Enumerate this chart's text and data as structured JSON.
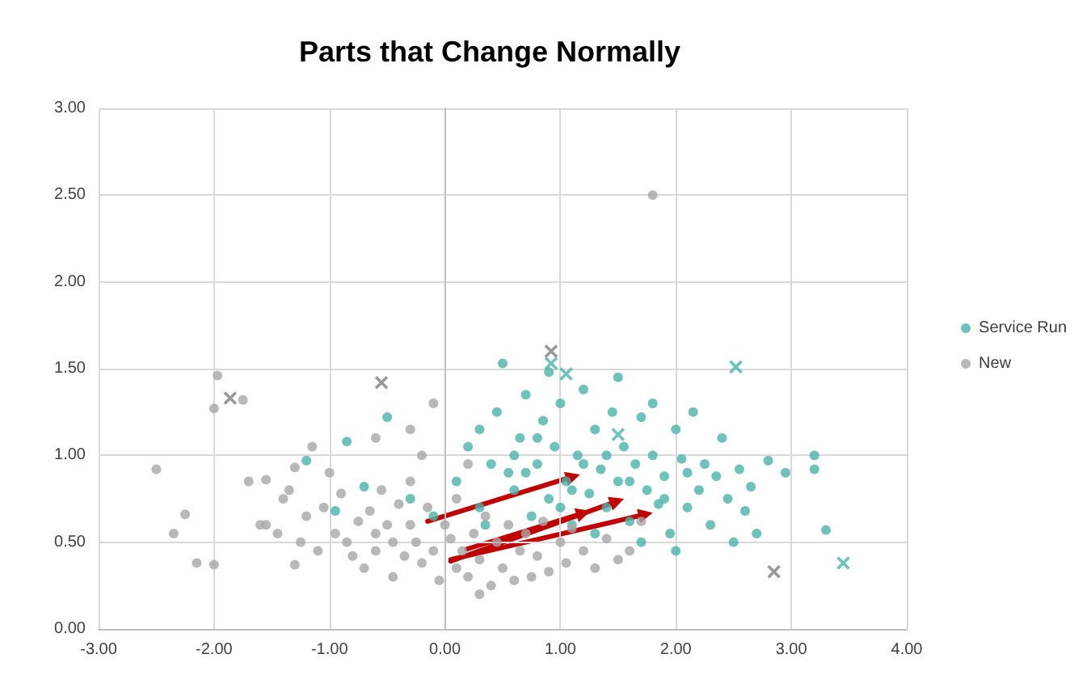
{
  "chart_data": {
    "type": "scatter",
    "title": "Parts that Change Normally",
    "xlim": [
      -3,
      4
    ],
    "ylim": [
      0,
      3
    ],
    "xticks": [
      {
        "value": -3,
        "label": "-3.00"
      },
      {
        "value": -2,
        "label": "-2.00"
      },
      {
        "value": -1,
        "label": "-1.00"
      },
      {
        "value": 0,
        "label": "0.00"
      },
      {
        "value": 1,
        "label": "1.00"
      },
      {
        "value": 2,
        "label": "2.00"
      },
      {
        "value": 3,
        "label": "3.00"
      },
      {
        "value": 4,
        "label": "4.00"
      }
    ],
    "yticks": [
      {
        "value": 0,
        "label": "0.00"
      },
      {
        "value": 0.5,
        "label": "0.50"
      },
      {
        "value": 1,
        "label": "1.00"
      },
      {
        "value": 1.5,
        "label": "1.50"
      },
      {
        "value": 2,
        "label": "2.00"
      },
      {
        "value": 2.5,
        "label": "2.50"
      },
      {
        "value": 3,
        "label": "3.00"
      }
    ],
    "grid": true,
    "legend": "right",
    "marker": "circle",
    "series": [
      {
        "name": "Service Run",
        "color": "#4bb3a8",
        "x": [
          -1.2,
          -0.85,
          -0.5,
          -0.95,
          -0.7,
          -0.3,
          -0.1,
          0.1,
          0.2,
          0.3,
          0.4,
          0.45,
          0.5,
          0.6,
          0.65,
          0.7,
          0.75,
          0.8,
          0.85,
          0.9,
          0.95,
          1.0,
          1.05,
          1.1,
          1.15,
          1.2,
          1.25,
          1.3,
          1.35,
          1.4,
          1.45,
          1.5,
          1.55,
          1.6,
          1.65,
          1.7,
          1.75,
          1.8,
          1.85,
          1.9,
          1.95,
          2.0,
          2.05,
          2.1,
          2.15,
          2.2,
          2.25,
          2.3,
          2.35,
          2.4,
          2.45,
          2.5,
          2.55,
          2.6,
          2.65,
          2.7,
          2.8,
          2.95,
          3.2,
          3.2,
          3.3,
          0.3,
          0.55,
          1.0,
          1.3,
          1.7,
          2.0,
          1.8,
          1.5,
          0.9,
          0.35,
          0.7,
          1.1,
          1.4,
          1.6,
          1.9,
          2.1,
          0.6,
          0.8,
          1.2
        ],
        "values": [
          0.97,
          1.08,
          1.22,
          0.68,
          0.82,
          0.75,
          0.65,
          0.85,
          1.05,
          0.7,
          0.95,
          1.25,
          1.53,
          0.8,
          1.1,
          1.35,
          0.65,
          0.95,
          1.2,
          0.75,
          1.05,
          1.3,
          0.85,
          0.6,
          1.0,
          1.38,
          0.78,
          1.15,
          0.92,
          0.7,
          1.25,
          0.85,
          1.05,
          0.62,
          0.95,
          1.22,
          0.8,
          1.0,
          0.72,
          0.88,
          0.55,
          1.15,
          0.98,
          0.7,
          1.25,
          0.8,
          0.95,
          0.6,
          0.88,
          1.1,
          0.75,
          0.5,
          0.92,
          0.68,
          0.82,
          0.55,
          0.97,
          0.9,
          1.0,
          0.92,
          0.57,
          1.15,
          0.9,
          0.7,
          0.55,
          0.5,
          0.45,
          1.3,
          1.45,
          1.48,
          0.6,
          0.9,
          0.8,
          1.0,
          0.85,
          0.75,
          0.9,
          1.0,
          1.1,
          0.95
        ]
      },
      {
        "name": "New",
        "color": "#a6a6a6",
        "x": [
          -2.5,
          -2.35,
          -2.25,
          -2.15,
          -2.0,
          -2.0,
          -1.97,
          -1.75,
          -1.7,
          -1.6,
          -1.55,
          -1.45,
          -1.4,
          -1.3,
          -1.35,
          -1.3,
          -1.25,
          -1.2,
          -1.15,
          -1.1,
          -1.05,
          -1.0,
          -0.95,
          -0.9,
          -0.85,
          -0.8,
          -0.75,
          -0.7,
          -0.65,
          -0.6,
          -0.6,
          -0.55,
          -0.5,
          -0.45,
          -0.45,
          -0.4,
          -0.35,
          -0.3,
          -0.3,
          -0.25,
          -0.2,
          -0.2,
          -0.15,
          -0.1,
          -0.1,
          -0.05,
          0.0,
          0.05,
          0.1,
          0.1,
          0.15,
          0.2,
          0.25,
          0.3,
          0.35,
          0.4,
          0.45,
          0.5,
          0.55,
          0.6,
          0.65,
          0.7,
          0.75,
          0.8,
          0.85,
          0.9,
          1.0,
          1.05,
          1.1,
          1.2,
          1.3,
          1.4,
          1.5,
          1.6,
          1.7,
          1.8,
          -0.6,
          -1.55,
          -0.3,
          0.2,
          0.3
        ],
        "values": [
          0.92,
          0.55,
          0.66,
          0.38,
          0.37,
          1.27,
          1.46,
          1.32,
          0.85,
          0.6,
          0.6,
          0.55,
          0.75,
          0.37,
          0.8,
          0.93,
          0.5,
          0.65,
          1.05,
          0.45,
          0.7,
          0.9,
          0.55,
          0.78,
          0.5,
          0.42,
          0.62,
          0.35,
          0.68,
          0.55,
          0.45,
          0.8,
          0.6,
          0.5,
          0.3,
          0.72,
          0.42,
          0.6,
          0.85,
          0.5,
          0.38,
          1.0,
          0.7,
          0.45,
          1.3,
          0.28,
          0.6,
          0.52,
          0.35,
          0.75,
          0.45,
          0.3,
          0.55,
          0.4,
          0.65,
          0.25,
          0.5,
          0.35,
          0.6,
          0.28,
          0.45,
          0.55,
          0.3,
          0.42,
          0.62,
          0.33,
          0.5,
          0.38,
          0.58,
          0.45,
          0.35,
          0.52,
          0.4,
          0.45,
          0.62,
          2.5,
          1.1,
          0.86,
          1.15,
          0.95,
          0.2
        ]
      },
      {
        "color": "#4bb3a8",
        "marker": "cross",
        "x": [
          0.92,
          1.05,
          2.52,
          3.45,
          1.5
        ],
        "values": [
          1.53,
          1.47,
          1.51,
          0.38,
          1.12
        ]
      },
      {
        "color": "#7f7f7f",
        "marker": "cross",
        "x": [
          -1.86,
          -0.55,
          0.92,
          2.85
        ],
        "values": [
          1.33,
          1.42,
          1.6,
          0.33
        ]
      }
    ]
  }
}
